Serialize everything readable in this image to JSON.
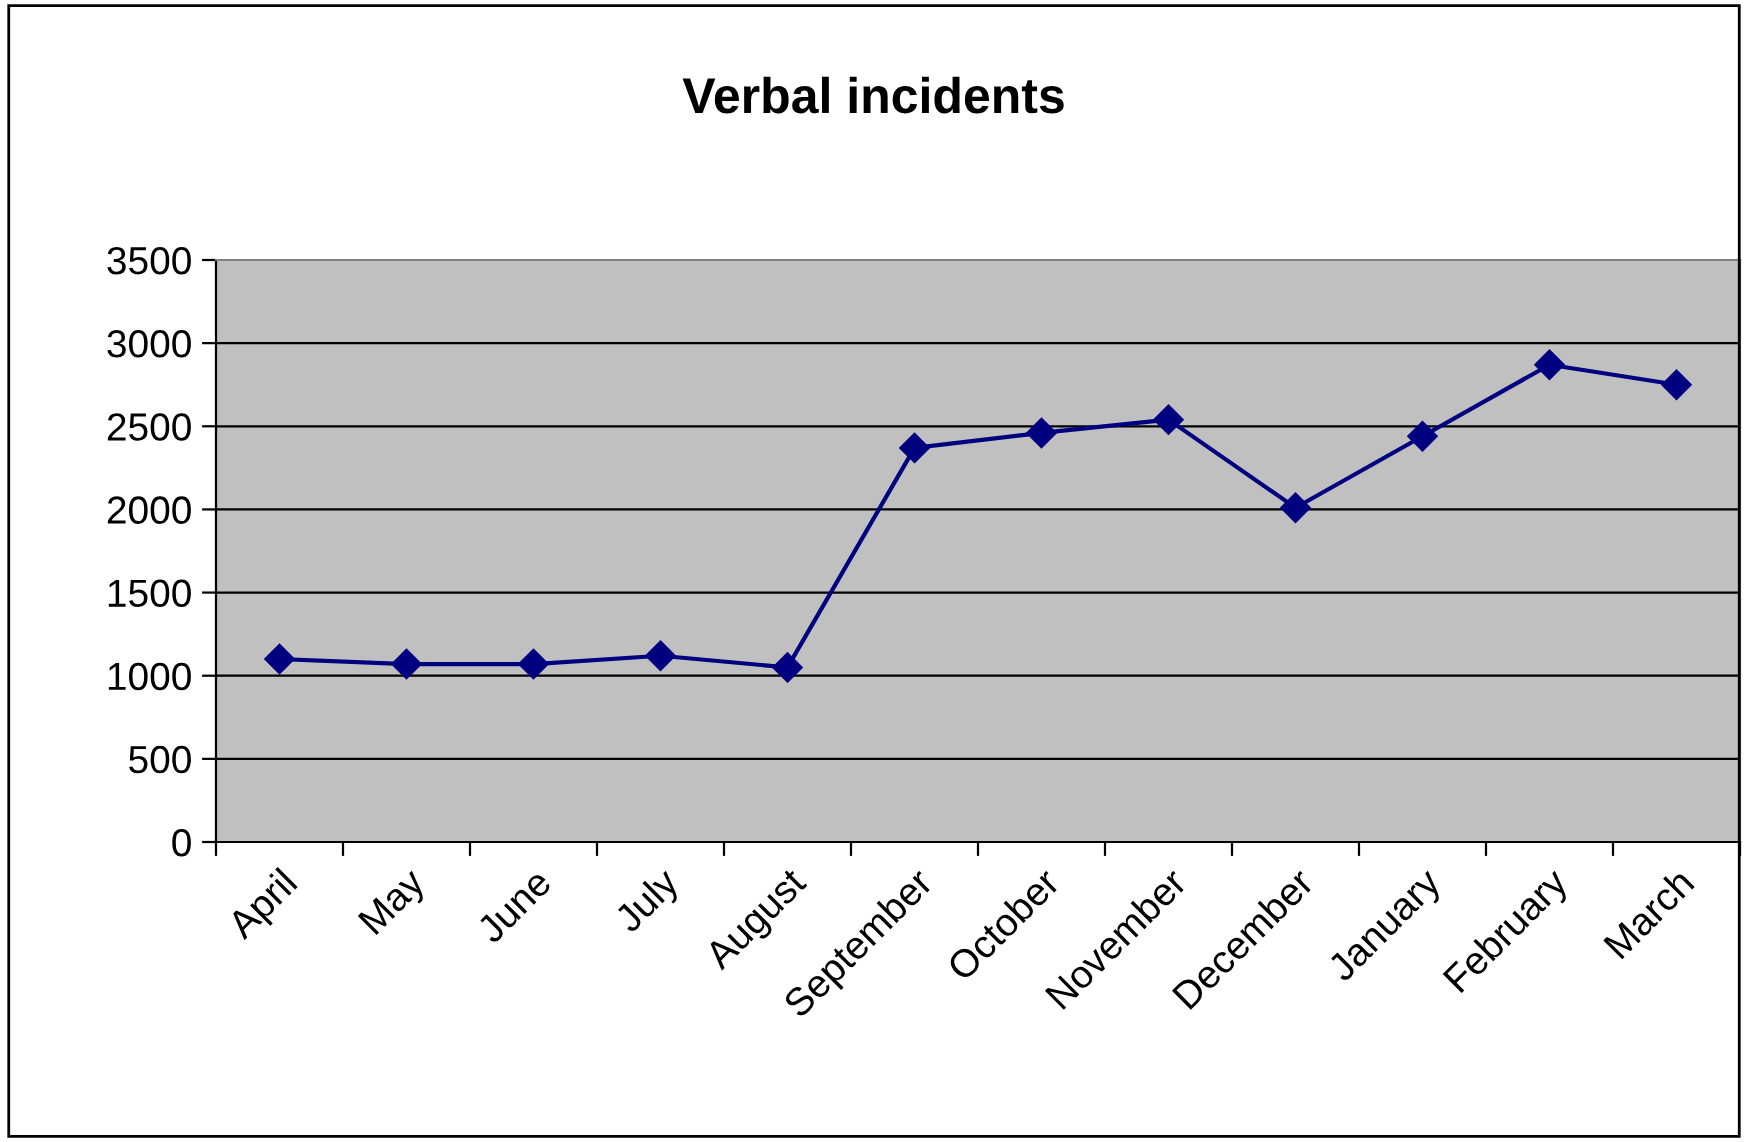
{
  "chart_data": {
    "type": "line",
    "title": "Verbal incidents",
    "categories": [
      "April",
      "May",
      "June",
      "July",
      "August",
      "September",
      "October",
      "November",
      "December",
      "January",
      "February",
      "March"
    ],
    "series": [
      {
        "color": "#000080",
        "values": [
          1100,
          1070,
          1070,
          1120,
          1050,
          2370,
          2460,
          2540,
          2010,
          2440,
          2870,
          2750
        ]
      }
    ],
    "ylim": [
      0,
      3500
    ],
    "yticks": [
      0,
      500,
      1000,
      1500,
      2000,
      2500,
      3000,
      3500
    ],
    "grid": "y",
    "marker": "diamond",
    "line_style": "solid",
    "legend": false
  }
}
